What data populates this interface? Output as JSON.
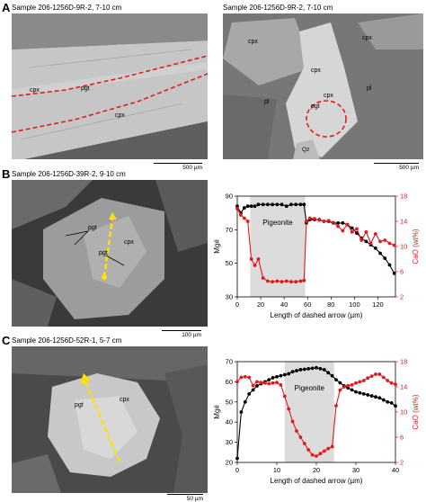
{
  "panels": {
    "A": {
      "letter": "A",
      "left_sample": "Sample 206-1256D-9R-2, 7-10 cm",
      "right_sample": "Sample 206-1256D-9R-2, 7-10 cm",
      "left_labels": [
        "cpx",
        "pgt",
        "cpx"
      ],
      "right_labels": [
        "cpx",
        "cpx",
        "cpx",
        "cpx",
        "pgt",
        "pl",
        "pl",
        "Qz"
      ],
      "left_scale": "500 µm",
      "right_scale": "500 µm"
    },
    "B": {
      "letter": "B",
      "sample": "Sample 206-1256D-39R-2, 9-10 cm",
      "labels": [
        "pgt",
        "pgt",
        "cpx"
      ],
      "scale": "100 µm"
    },
    "C": {
      "letter": "C",
      "sample": "Sample 206-1256D-52R-1, 5-7 cm",
      "labels": [
        "pgt",
        "cpx"
      ],
      "scale": "50 µm"
    }
  },
  "chart_data": [
    {
      "type": "line",
      "panel": "B",
      "xlabel": "Length of dashed arrow (µm)",
      "ylabel_left": "Mg#",
      "ylabel_right": "CaO (wt%)",
      "xlim": [
        0,
        135
      ],
      "ylim_left": [
        30,
        90
      ],
      "ylim_right": [
        2,
        18
      ],
      "xticks": [
        0,
        20,
        40,
        60,
        80,
        100,
        120
      ],
      "yticks_left": [
        30,
        50,
        70,
        90
      ],
      "yticks_right": [
        2,
        6,
        10,
        14,
        18
      ],
      "shaded_region": {
        "label": "Pigeonite",
        "x": [
          11,
          58
        ]
      },
      "grid": false,
      "series": [
        {
          "name": "Mg#",
          "axis": "left",
          "color": "#000000",
          "x": [
            0,
            3,
            6,
            9,
            12,
            15,
            18,
            22,
            26,
            30,
            34,
            38,
            42,
            46,
            50,
            54,
            57,
            59,
            62,
            66,
            70,
            74,
            78,
            82,
            86,
            90,
            94,
            98,
            102,
            106,
            110,
            114,
            118,
            122,
            126,
            130,
            134
          ],
          "y": [
            84,
            80,
            83,
            84,
            84,
            84,
            85,
            85,
            85,
            85,
            85,
            85,
            84,
            85,
            85,
            85,
            85,
            74,
            76,
            76,
            76,
            75,
            75,
            74,
            74,
            74,
            73,
            71,
            68,
            65,
            63,
            61,
            59,
            56,
            53,
            49,
            44
          ]
        },
        {
          "name": "CaO (wt%)",
          "axis": "right",
          "color": "#e0191c",
          "x": [
            0,
            3,
            6,
            9,
            12,
            15,
            18,
            22,
            26,
            30,
            34,
            38,
            42,
            46,
            50,
            54,
            57,
            59,
            62,
            66,
            70,
            74,
            78,
            82,
            86,
            90,
            94,
            98,
            102,
            106,
            110,
            114,
            118,
            122,
            126,
            130,
            134
          ],
          "y": [
            16,
            15,
            14.5,
            14,
            8,
            7,
            8,
            5,
            4.5,
            4.4,
            4.5,
            4.4,
            4.5,
            4.4,
            4.4,
            4.5,
            4.6,
            14,
            14.5,
            14.4,
            14.2,
            14,
            14.1,
            13.8,
            13.2,
            12.5,
            13.5,
            12.3,
            12.8,
            11,
            12.3,
            10.5,
            12,
            10.8,
            11,
            10.5,
            10.2
          ]
        }
      ]
    },
    {
      "type": "line",
      "panel": "C",
      "xlabel": "Length of dashed arrow (µm)",
      "ylabel_left": "Mg#",
      "ylabel_right": "CaO (wt%)",
      "xlim": [
        0,
        40
      ],
      "ylim_left": [
        20,
        70
      ],
      "ylim_right": [
        2,
        18
      ],
      "xticks": [
        0,
        10,
        20,
        30,
        40
      ],
      "yticks_left": [
        20,
        30,
        40,
        50,
        60,
        70
      ],
      "yticks_right": [
        2,
        6,
        10,
        14,
        18
      ],
      "shaded_region": {
        "label": "Pigeonite",
        "x": [
          12,
          24.5
        ]
      },
      "grid": false,
      "series": [
        {
          "name": "Mg#",
          "axis": "left",
          "color": "#000000",
          "x": [
            0,
            1,
            2,
            3,
            4,
            5,
            6,
            7,
            8,
            9,
            10,
            11,
            12,
            13,
            14,
            15,
            16,
            17,
            18,
            19,
            20,
            21,
            22,
            23,
            24,
            25,
            26,
            27,
            28,
            29,
            30,
            31,
            32,
            33,
            34,
            35,
            36,
            37,
            38,
            39,
            40
          ],
          "y": [
            22,
            45,
            50,
            54,
            56,
            58,
            59,
            60,
            61,
            62,
            62.5,
            63,
            63.5,
            64,
            65,
            65.5,
            66,
            66.2,
            66.5,
            66.7,
            67,
            66.5,
            66,
            64.5,
            63,
            61,
            59.5,
            58,
            57,
            56,
            55,
            54.5,
            54,
            53.5,
            53,
            52.5,
            52,
            51,
            50,
            49.5,
            48
          ]
        },
        {
          "name": "CaO (wt%)",
          "axis": "right",
          "color": "#e0191c",
          "x": [
            0,
            1,
            2,
            3,
            4,
            5,
            6,
            7,
            8,
            9,
            10,
            11,
            12,
            13,
            14,
            15,
            16,
            17,
            18,
            19,
            20,
            21,
            22,
            23,
            24,
            25,
            26,
            27,
            28,
            29,
            30,
            31,
            32,
            33,
            34,
            35,
            36,
            37,
            38,
            39,
            40
          ],
          "y": [
            14.8,
            15.5,
            15.6,
            15.5,
            14.2,
            14.8,
            14.7,
            14.6,
            14.5,
            14.6,
            14.7,
            14.3,
            12.5,
            10.5,
            8.5,
            7,
            6,
            5,
            4,
            3.2,
            3,
            3.4,
            3.8,
            4.2,
            4.5,
            11,
            13.5,
            14,
            14.2,
            14.3,
            14.6,
            14.8,
            15,
            15.4,
            15.7,
            16,
            16,
            15.5,
            15,
            14.6,
            14.4
          ]
        }
      ]
    }
  ]
}
